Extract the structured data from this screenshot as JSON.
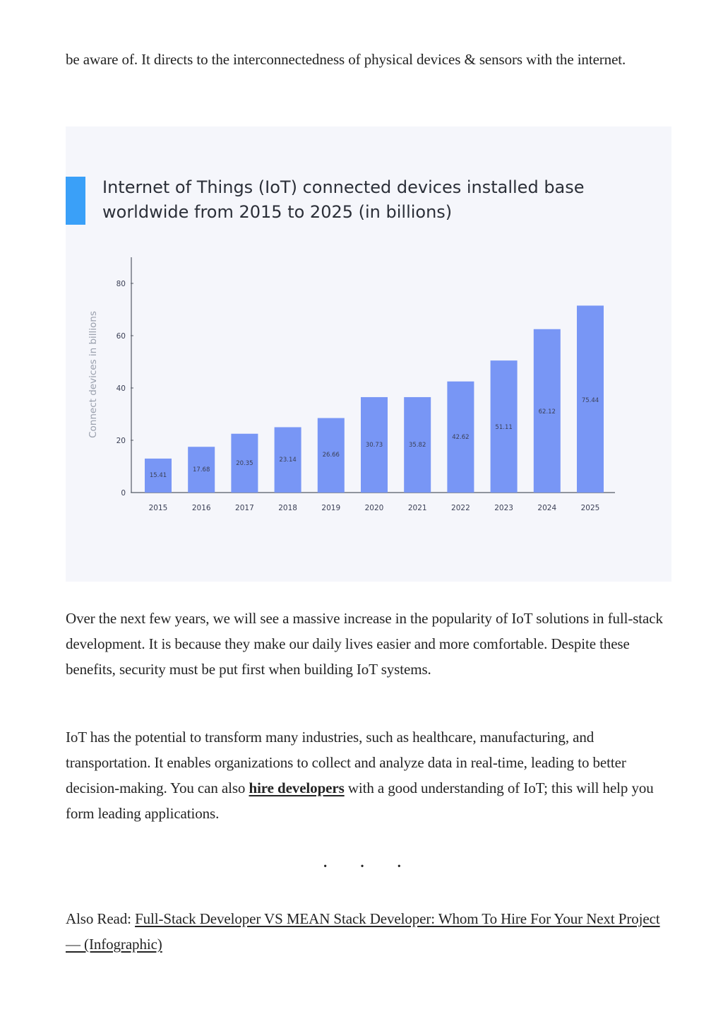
{
  "intro": {
    "text": "be aware of. It directs to the interconnectedness of physical devices & sensors with the internet."
  },
  "chart_data": {
    "type": "bar",
    "title": "Internet of Things (IoT) connected devices installed base worldwide from 2015 to 2025 (in billions)",
    "title_lines": [
      "Internet of Things (IoT) connected devices installed base",
      "worldwide from 2015 to 2025 (in billions)"
    ],
    "xlabel": "",
    "ylabel": "Connect devices in billions",
    "categories": [
      "2015",
      "2016",
      "2017",
      "2018",
      "2019",
      "2020",
      "2021",
      "2022",
      "2023",
      "2024",
      "2025"
    ],
    "values": [
      15.41,
      17.68,
      20.35,
      23.14,
      26.66,
      30.73,
      35.82,
      42.62,
      51.11,
      62.12,
      75.44
    ],
    "value_labels": [
      "15.41",
      "17.68",
      "20.35",
      "23.14",
      "26.66",
      "30.73",
      "35.82",
      "42.62",
      "51.11",
      "62.12",
      "75.44"
    ],
    "bar_heights_read": [
      13,
      17.5,
      22.5,
      25,
      28.5,
      36.5,
      36.5,
      42.5,
      50.5,
      62.5,
      71.5
    ],
    "yticks": [
      0,
      20,
      40,
      60,
      80
    ],
    "ylim": [
      0,
      90
    ],
    "grid": false,
    "legend": "none",
    "colors": {
      "bar": "#7896f5",
      "accent": "#3aa0f8",
      "title": "#2b2f38",
      "axis": "#555b66",
      "label": "#3a3f55",
      "background": "#f5f6fb"
    }
  },
  "para_over": {
    "text": "Over the next few years, we will see a massive increase in the popularity of IoT solutions in full-stack development. It is because they make our daily lives easier and more comfortable. Despite these benefits, security must be put first when building IoT systems."
  },
  "para_iot": {
    "text_before": "IoT has the potential to transform many industries, such as healthcare, manufacturing, and transportation. It enables organizations to collect and analyze data in real-time, leading to better decision-making. You can also ",
    "link_label": "hire developers",
    "text_after": " with a good understanding of IoT; this will help you form leading applications."
  },
  "separator": {
    "text": "· · ·"
  },
  "also_read": {
    "prefix": "Also Read: ",
    "link_label": "Full-Stack Developer VS MEAN Stack Developer: Whom To Hire For Your Next Project — (Infographic)"
  }
}
